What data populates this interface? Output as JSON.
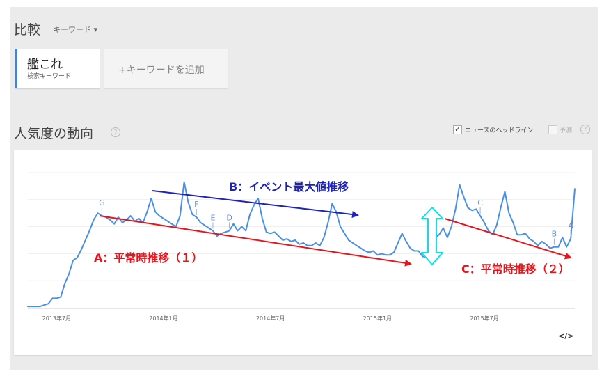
{
  "header": {
    "compare_label": "比較",
    "keyword_dropdown_label": "キーワード ▾"
  },
  "keyword_card": {
    "term": "艦これ",
    "type": "検索キーワード"
  },
  "add_keyword_label": "+キーワードを追加",
  "interest": {
    "title": "人気度の動向",
    "help_icon": "?",
    "news_headlines_label": "ニュースのヘッドライン",
    "news_headlines_checked": true,
    "forecast_label": "予測",
    "forecast_checked": false
  },
  "embed_label": "</>",
  "colors": {
    "series": "#4a90e2",
    "arrow_a": "#e8141c",
    "arrow_b": "#1d22b8",
    "arrow_c": "#e8141c",
    "double_arrow": "#00e5f0"
  },
  "annotations": {
    "a": "A：平常時推移（１）",
    "b": "B：イベント最大値推移",
    "c": "C：平常時推移（２）"
  },
  "chart_data": {
    "type": "line",
    "title": "人気度の動向",
    "x_tick_labels": [
      "2013年7月",
      "2014年1月",
      "2014年7月",
      "2015年1月",
      "2015年7月"
    ],
    "ylim": [
      0,
      100
    ],
    "grid": true,
    "series": [
      {
        "values": [
          1,
          1,
          1,
          1,
          2,
          3,
          7,
          7,
          8,
          18,
          25,
          35,
          37,
          43,
          50,
          57,
          65,
          70,
          68,
          67,
          65,
          62,
          67,
          63,
          65,
          68,
          64,
          66,
          63,
          71,
          81,
          71,
          68,
          66,
          64,
          62,
          60,
          68,
          93,
          78,
          69,
          67,
          63,
          61,
          59,
          57,
          53,
          55,
          56,
          57,
          62,
          57,
          60,
          57,
          69,
          76,
          81,
          66,
          56,
          55,
          56,
          53,
          50,
          51,
          49,
          50,
          47,
          48,
          46,
          46,
          48,
          46,
          52,
          63,
          77,
          71,
          60,
          55,
          50,
          48,
          46,
          44,
          42,
          41,
          42,
          39,
          40,
          39,
          39,
          41,
          48,
          55,
          49,
          44,
          42,
          42,
          38,
          37,
          43,
          52,
          54,
          59,
          52,
          60,
          73,
          91,
          82,
          74,
          72,
          73,
          68,
          63,
          57,
          54,
          61,
          74,
          86,
          70,
          63,
          54,
          54,
          55,
          51,
          49,
          46,
          49,
          47,
          44,
          45,
          45,
          52,
          45,
          51,
          88
        ],
        "color": "#4a90e2"
      }
    ],
    "event_markers": [
      {
        "label": "G",
        "index": 18
      },
      {
        "label": "F",
        "index": 41
      },
      {
        "label": "E",
        "index": 45
      },
      {
        "label": "D",
        "index": 49
      },
      {
        "label": "C",
        "index": 110
      },
      {
        "label": "B",
        "index": 128
      },
      {
        "label": "A",
        "index": 132
      }
    ]
  }
}
